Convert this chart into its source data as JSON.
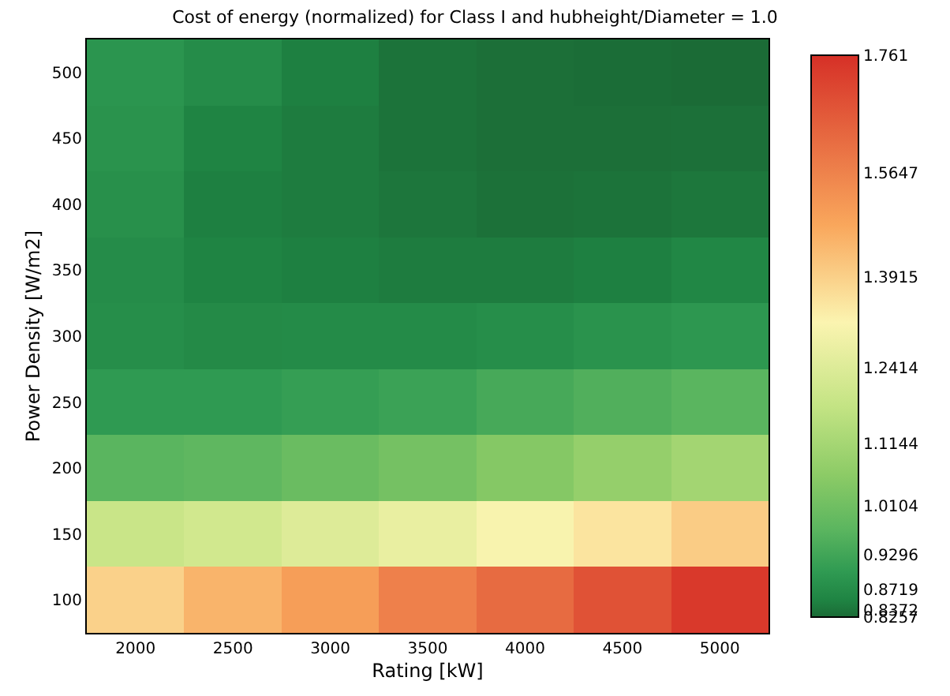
{
  "chart_data": {
    "type": "heatmap",
    "title": "Cost of energy (normalized) for Class I and hubheight/Diameter = 1.0",
    "xlabel": "Rating [kW]",
    "ylabel": "Power Density [W/m2]",
    "categories": [
      "2000",
      "2500",
      "3000",
      "3500",
      "4000",
      "4500",
      "5000"
    ],
    "y_categories": [
      "500",
      "450",
      "400",
      "350",
      "300",
      "250",
      "200",
      "150",
      "100"
    ],
    "cells": [
      [
        0.89,
        0.872,
        0.85,
        0.835,
        0.83,
        0.828,
        0.826
      ],
      [
        0.885,
        0.855,
        0.845,
        0.835,
        0.83,
        0.83,
        0.832
      ],
      [
        0.88,
        0.85,
        0.845,
        0.838,
        0.833,
        0.835,
        0.84
      ],
      [
        0.872,
        0.855,
        0.85,
        0.845,
        0.845,
        0.85,
        0.86
      ],
      [
        0.875,
        0.868,
        0.869,
        0.87,
        0.875,
        0.885,
        0.895
      ],
      [
        0.9,
        0.9,
        0.91,
        0.92,
        0.94,
        0.955,
        0.97
      ],
      [
        0.97,
        0.98,
        1.0,
        1.02,
        1.05,
        1.08,
        1.11
      ],
      [
        1.19,
        1.21,
        1.24,
        1.27,
        1.31,
        1.35,
        1.4
      ],
      [
        1.39,
        1.45,
        1.5,
        1.57,
        1.62,
        1.68,
        1.74
      ]
    ],
    "clim": [
      0.8257,
      1.761
    ],
    "cticks": [
      0.8257,
      0.8372,
      0.8719,
      0.9296,
      1.0104,
      1.1144,
      1.2414,
      1.3915,
      1.5647,
      1.761
    ],
    "colors": [
      "#1b6b36",
      "#1f8443",
      "#2f9a52",
      "#5ab55f",
      "#8ccb66",
      "#c4e484",
      "#fbf4b0",
      "#f9a75c",
      "#d63027"
    ]
  }
}
